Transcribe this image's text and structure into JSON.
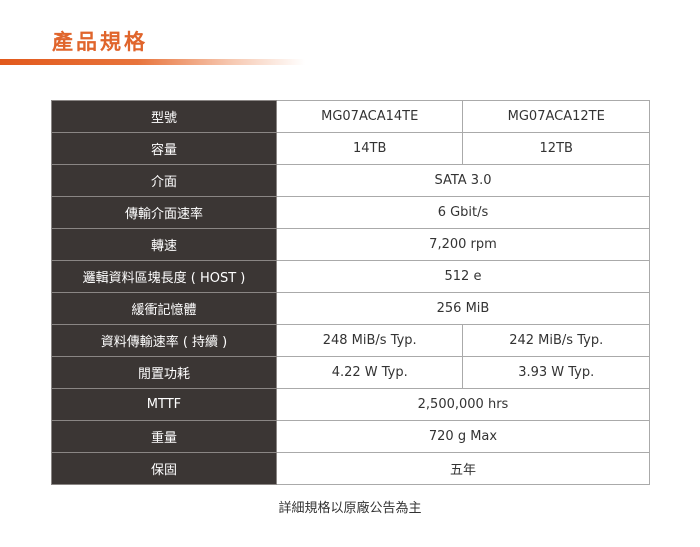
{
  "title": "產品規格",
  "rows": [
    {
      "label": "型號",
      "values": [
        "MG07ACA14TE",
        "MG07ACA12TE"
      ]
    },
    {
      "label": "容量",
      "values": [
        "14TB",
        "12TB"
      ]
    },
    {
      "label": "介面",
      "values": [
        "SATA 3.0"
      ]
    },
    {
      "label": "傳輸介面速率",
      "values": [
        "6 Gbit/s"
      ]
    },
    {
      "label": "轉速",
      "values": [
        "7,200 rpm"
      ]
    },
    {
      "label": "邏輯資料區塊長度 ( HOST )",
      "values": [
        "512 e"
      ]
    },
    {
      "label": "緩衝記憶體",
      "values": [
        "256 MiB"
      ]
    },
    {
      "label": "資料傳輸速率 ( 持續 )",
      "values": [
        "248 MiB/s Typ.",
        "242 MiB/s Typ."
      ]
    },
    {
      "label": "閒置功耗",
      "values": [
        "4.22 W Typ.",
        "3.93 W Typ."
      ]
    },
    {
      "label": "MTTF",
      "values": [
        "2,500,000 hrs"
      ]
    },
    {
      "label": "重量",
      "values": [
        "720 g Max"
      ]
    },
    {
      "label": "保固",
      "values": [
        "五年"
      ]
    }
  ],
  "note": "詳細規格以原廠公告為主",
  "colors": {
    "accent": "#e0652c",
    "label_bg": "#3b3634"
  }
}
